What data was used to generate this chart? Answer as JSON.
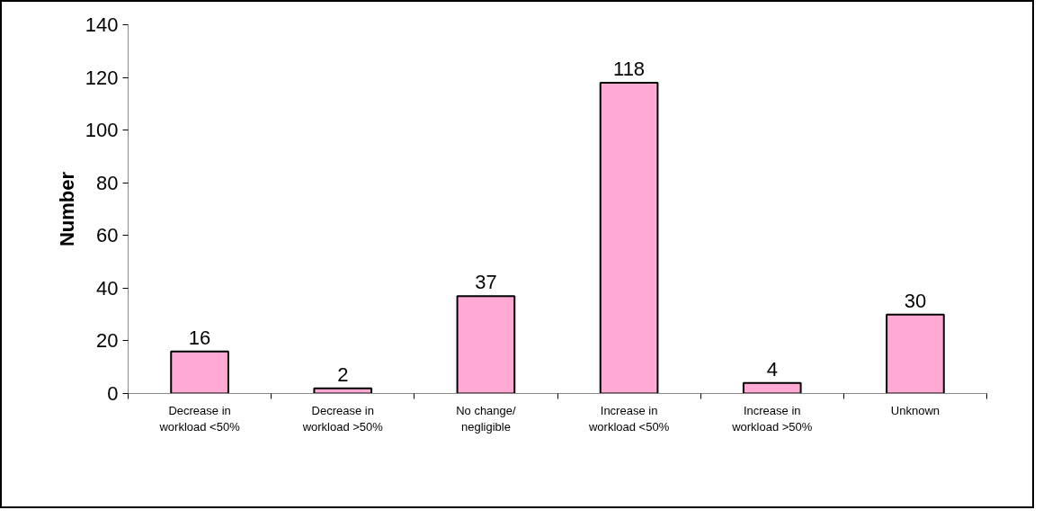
{
  "chart_data": {
    "type": "bar",
    "ylabel": "Number",
    "categories": [
      "Decrease in workload <50%",
      "Decrease in workload >50%",
      "No change/ negligible",
      "Increase in workload <50%",
      "Increase in workload >50%",
      "Unknown"
    ],
    "values": [
      16,
      2,
      37,
      118,
      4,
      30
    ],
    "color": "#ffa9d4",
    "ylim": [
      0,
      140
    ],
    "yticks": [
      0,
      20,
      40,
      60,
      80,
      100,
      120,
      140
    ],
    "grid": false,
    "data_labels": true
  }
}
